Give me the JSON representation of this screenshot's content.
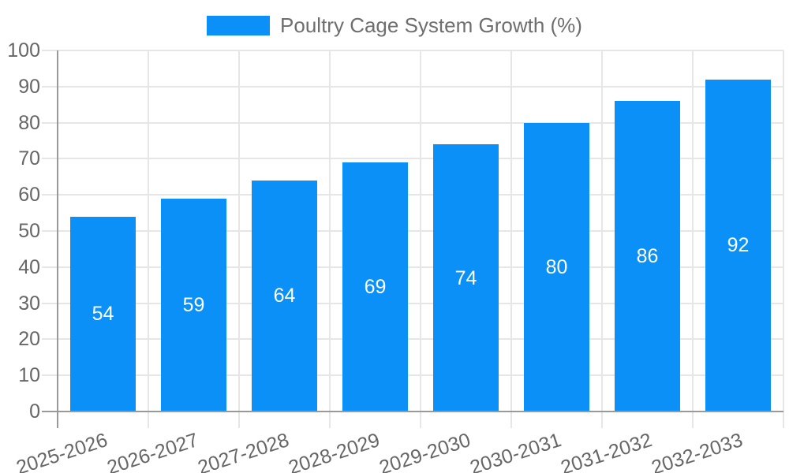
{
  "legend": {
    "label": "Poultry Cage System Growth (%)"
  },
  "chart_data": {
    "type": "bar",
    "title": "Poultry Cage System Growth (%)",
    "categories": [
      "2025-2026",
      "2026-2027",
      "2027-2028",
      "2028-2029",
      "2029-2030",
      "2030-2031",
      "2031-2032",
      "2032-2033"
    ],
    "values": [
      54,
      59,
      64,
      69,
      74,
      80,
      86,
      92
    ],
    "xlabel": "",
    "ylabel": "",
    "ylim": [
      0,
      100
    ],
    "yticks": [
      0,
      10,
      20,
      30,
      40,
      50,
      60,
      70,
      80,
      90,
      100
    ],
    "grid": true,
    "legend_position": "top",
    "bar_label_position": "inside-center",
    "colors": {
      "bar": "#0a90f6",
      "bar_value_label": "#ffffff",
      "axis_text": "#666666",
      "legend_text": "#6e6e6e",
      "gridline": "#e6e6e6",
      "axis_line": "#999999",
      "background": "#ffffff"
    }
  }
}
